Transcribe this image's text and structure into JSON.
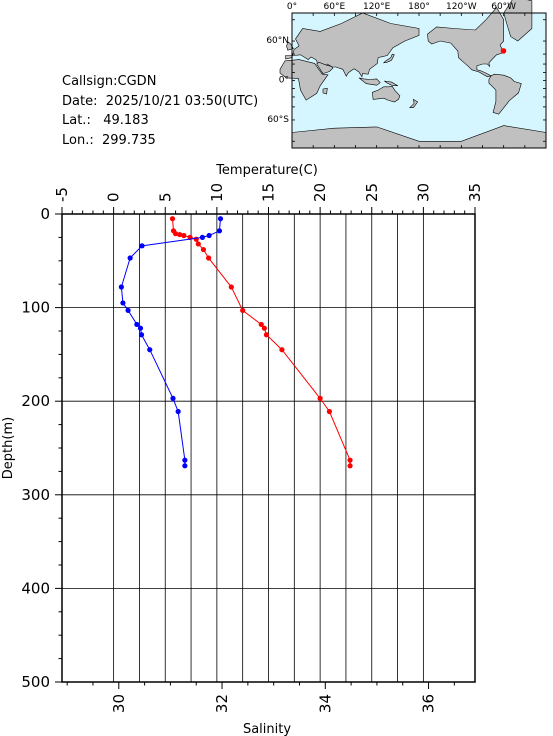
{
  "station": {
    "callsign_label": "Callsign:",
    "callsign": "CGDN",
    "date_label": "Date:",
    "date": "2025/10/21 03:50(UTC)",
    "lat_label": "Lat.:",
    "lat": "49.183",
    "lon_label": "Lon.:",
    "lon": "299.735"
  },
  "map": {
    "top_ticks": [
      "0°",
      "60°E",
      "120°E",
      "180°",
      "120°W",
      "60°W"
    ],
    "left_ticks": [
      "60°N",
      "0°",
      "60°S"
    ],
    "ocean_color": "#d6f6ff",
    "land_color": "#c0c0c0",
    "marker_color": "#ff0000",
    "marker_lat": 49.183,
    "marker_lon": 299.735
  },
  "chart_data": {
    "type": "line",
    "xlabel_top": "Temperature(C)",
    "xlabel_bottom": "Salinity",
    "ylabel": "Depth(m)",
    "temperature_ticks": [
      "-5",
      "0",
      "5",
      "10",
      "15",
      "20",
      "25",
      "30",
      "35"
    ],
    "salinity_ticks": [
      "30",
      "32",
      "34",
      "36"
    ],
    "depth_ticks": [
      "0",
      "100",
      "200",
      "300",
      "400",
      "500"
    ],
    "temperature_range": [
      -5,
      35
    ],
    "salinity_range": [
      28.9,
      36.9
    ],
    "depth_range": [
      0,
      500
    ],
    "grid": true,
    "series": [
      {
        "quantity": "temperature",
        "color": "#ff0000",
        "depth": [
          5,
          18,
          21,
          22,
          23,
          25,
          27,
          32,
          38,
          47,
          78,
          103,
          118,
          122,
          129,
          145,
          197,
          211,
          263,
          269
        ],
        "values": [
          5.7,
          5.8,
          6.0,
          6.4,
          6.8,
          7.4,
          8.0,
          8.2,
          8.7,
          9.2,
          11.4,
          12.5,
          14.3,
          14.6,
          14.8,
          16.3,
          20.0,
          20.9,
          22.9,
          22.9
        ]
      },
      {
        "quantity": "salinity",
        "color": "#0000ff",
        "depth": [
          5,
          18,
          23,
          25,
          34,
          47,
          78,
          95,
          103,
          118,
          122,
          129,
          145,
          197,
          211,
          263,
          269
        ],
        "values": [
          31.97,
          31.95,
          31.75,
          31.62,
          30.45,
          30.22,
          30.05,
          30.08,
          30.18,
          30.35,
          30.42,
          30.44,
          30.6,
          31.05,
          31.15,
          31.28,
          31.28
        ]
      }
    ]
  }
}
